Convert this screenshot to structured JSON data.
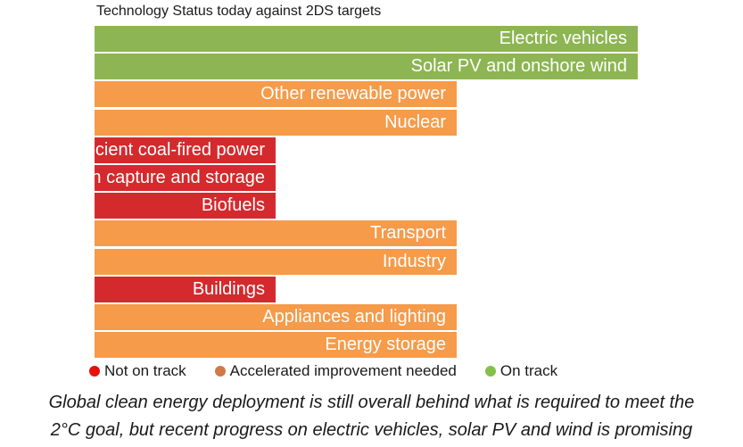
{
  "chart_data": {
    "type": "bar",
    "orientation": "horizontal",
    "title": "Technology Status today against 2DS targets",
    "categories": [
      "Electric vehicles",
      "Solar PV and onshore wind",
      "Other renewable power",
      "Nuclear",
      "More efficient coal-fired power",
      "Carbon capture and storage",
      "Biofuels",
      "Transport",
      "Industry",
      "Buildings",
      "Appliances and lighting",
      "Energy storage"
    ],
    "status": [
      "on_track",
      "on_track",
      "accelerated",
      "accelerated",
      "not_on_track",
      "not_on_track",
      "not_on_track",
      "accelerated",
      "accelerated",
      "not_on_track",
      "accelerated",
      "accelerated"
    ],
    "values": [
      3,
      3,
      2,
      2,
      1,
      1,
      1,
      2,
      2,
      1,
      2,
      2
    ],
    "xlim": [
      0,
      3
    ],
    "colors": {
      "on_track": "#8db553",
      "accelerated": "#f59b4a",
      "not_on_track": "#d42a2d"
    },
    "legend": [
      {
        "label": "Not on track",
        "color": "#e8100d"
      },
      {
        "label": "Accelerated improvement needed",
        "color": "#d07a4a"
      },
      {
        "label": "On track",
        "color": "#85c048"
      }
    ]
  },
  "caption": [
    "Global clean energy deployment is still overall behind what is required to meet the",
    "2°C goal, but recent progress on electric vehicles, solar PV and wind is promising"
  ]
}
